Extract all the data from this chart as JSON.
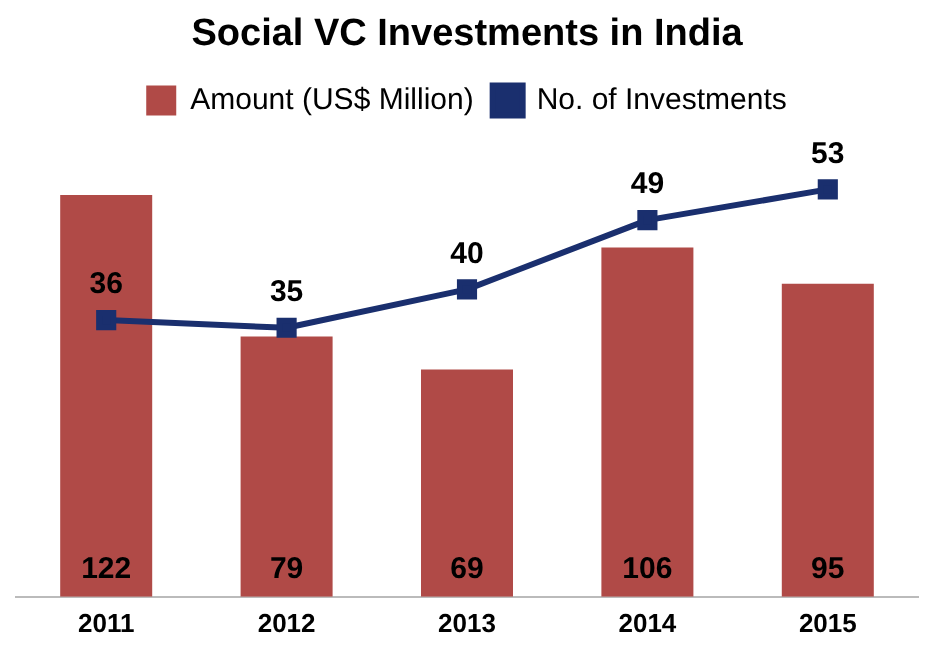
{
  "chart_data": {
    "type": "bar",
    "title": "Social VC Investments in India",
    "categories": [
      "2011",
      "2012",
      "2013",
      "2014",
      "2015"
    ],
    "series": [
      {
        "name": "Amount (US$ Million)",
        "color": "#b04a47",
        "values": [
          122,
          79,
          69,
          106,
          95
        ]
      },
      {
        "name": "No. of Investments",
        "type": "line",
        "axis": "y2",
        "color": "#1a2f6e",
        "values": [
          36,
          35,
          40,
          49,
          53
        ]
      }
    ],
    "data_labels": true,
    "legend": "top",
    "marker": "square",
    "grid": false,
    "tick_labels": "x"
  }
}
